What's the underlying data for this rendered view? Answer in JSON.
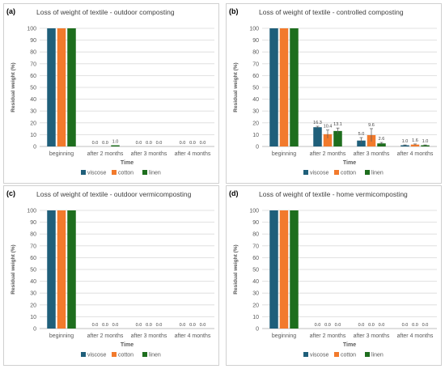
{
  "colors": {
    "viscose": "#1f5f7a",
    "cotton": "#f27a2c",
    "linen": "#1e6e1e",
    "grid": "#d9d9d9"
  },
  "chart_data": [
    {
      "type": "bar",
      "panel_label": "(a)",
      "title": "Loss of weight of textile - outdoor composting",
      "xlabel": "Time",
      "ylabel": "Residual weight (%)",
      "ylim": [
        0,
        100
      ],
      "yticks": [
        0,
        10,
        20,
        30,
        40,
        50,
        60,
        70,
        80,
        90,
        100
      ],
      "grid": true,
      "legend": "bottom",
      "categories": [
        "beginning",
        "after 2 months",
        "after 3 months",
        "after 4 months"
      ],
      "series": [
        {
          "name": "viscose",
          "values": [
            100,
            0.0,
            0.0,
            0.0
          ],
          "labels": [
            "",
            "0.0",
            "0.0",
            "0.0"
          ]
        },
        {
          "name": "cotton",
          "values": [
            100,
            0.0,
            0.0,
            0.0
          ],
          "labels": [
            "",
            "0.0",
            "0.0",
            "0.0"
          ]
        },
        {
          "name": "linen",
          "values": [
            100,
            1.0,
            0.0,
            0.0
          ],
          "labels": [
            "",
            "1.0",
            "0.0",
            "0.0"
          ]
        }
      ]
    },
    {
      "type": "bar",
      "panel_label": "(b)",
      "title": "Loss of weight of textile - controlled composting",
      "xlabel": "Time",
      "ylabel": "Residual weight (%)",
      "ylim": [
        0,
        100
      ],
      "yticks": [
        0,
        10,
        20,
        30,
        40,
        50,
        60,
        70,
        80,
        90,
        100
      ],
      "grid": true,
      "legend": "bottom",
      "categories": [
        "beginning",
        "after 2 months",
        "after 3 months",
        "after 4 months"
      ],
      "series": [
        {
          "name": "viscose",
          "values": [
            100,
            16.3,
            5.0,
            1.0
          ],
          "errors": [
            0,
            0.8,
            2.5,
            0.3
          ],
          "labels": [
            "",
            "16.3",
            "5.0",
            "1.0"
          ]
        },
        {
          "name": "cotton",
          "values": [
            100,
            10.4,
            9.6,
            1.6
          ],
          "errors": [
            0,
            3.5,
            5.5,
            0.5
          ],
          "labels": [
            "",
            "10.4",
            "9.6",
            "1.6"
          ]
        },
        {
          "name": "linen",
          "values": [
            100,
            13.1,
            2.6,
            1.0
          ],
          "errors": [
            0,
            2.5,
            0.8,
            0.3
          ],
          "labels": [
            "",
            "13.1",
            "2.6",
            "1.0"
          ]
        }
      ]
    },
    {
      "type": "bar",
      "panel_label": "(c)",
      "title": "Loss of weight of textile - outdoor vermicomposting",
      "xlabel": "Time",
      "ylabel": "Residual weight (%)",
      "ylim": [
        0,
        100
      ],
      "yticks": [
        0,
        10,
        20,
        30,
        40,
        50,
        60,
        70,
        80,
        90,
        100
      ],
      "grid": true,
      "legend": "bottom",
      "categories": [
        "beginning",
        "after 2 months",
        "after 3 months",
        "after 4 months"
      ],
      "series": [
        {
          "name": "viscose",
          "values": [
            100,
            0.0,
            0.0,
            0.0
          ],
          "labels": [
            "",
            "0.0",
            "0.0",
            "0.0"
          ]
        },
        {
          "name": "cotton",
          "values": [
            100,
            0.0,
            0.0,
            0.0
          ],
          "labels": [
            "",
            "0.0",
            "0.0",
            "0.0"
          ]
        },
        {
          "name": "linen",
          "values": [
            100,
            0.0,
            0.0,
            0.0
          ],
          "labels": [
            "",
            "0.0",
            "0.0",
            "0.0"
          ]
        }
      ]
    },
    {
      "type": "bar",
      "panel_label": "(d)",
      "title": "Loss of weight of textile - home vermicomposting",
      "xlabel": "Time",
      "ylabel": "Residual weight (%)",
      "ylim": [
        0,
        100
      ],
      "yticks": [
        0,
        10,
        20,
        30,
        40,
        50,
        60,
        70,
        80,
        90,
        100
      ],
      "grid": true,
      "legend": "bottom",
      "categories": [
        "beginning",
        "after 2 months",
        "after 3 months",
        "after 4 months"
      ],
      "series": [
        {
          "name": "viscose",
          "values": [
            100,
            0.0,
            0.0,
            0.0
          ],
          "labels": [
            "",
            "0.0",
            "0.0",
            "0.0"
          ]
        },
        {
          "name": "cotton",
          "values": [
            100,
            0.0,
            0.0,
            0.0
          ],
          "labels": [
            "",
            "0.0",
            "0.0",
            "0.0"
          ]
        },
        {
          "name": "linen",
          "values": [
            100,
            0.0,
            0.0,
            0.0
          ],
          "labels": [
            "",
            "0.0",
            "0.0",
            "0.0"
          ]
        }
      ]
    }
  ]
}
